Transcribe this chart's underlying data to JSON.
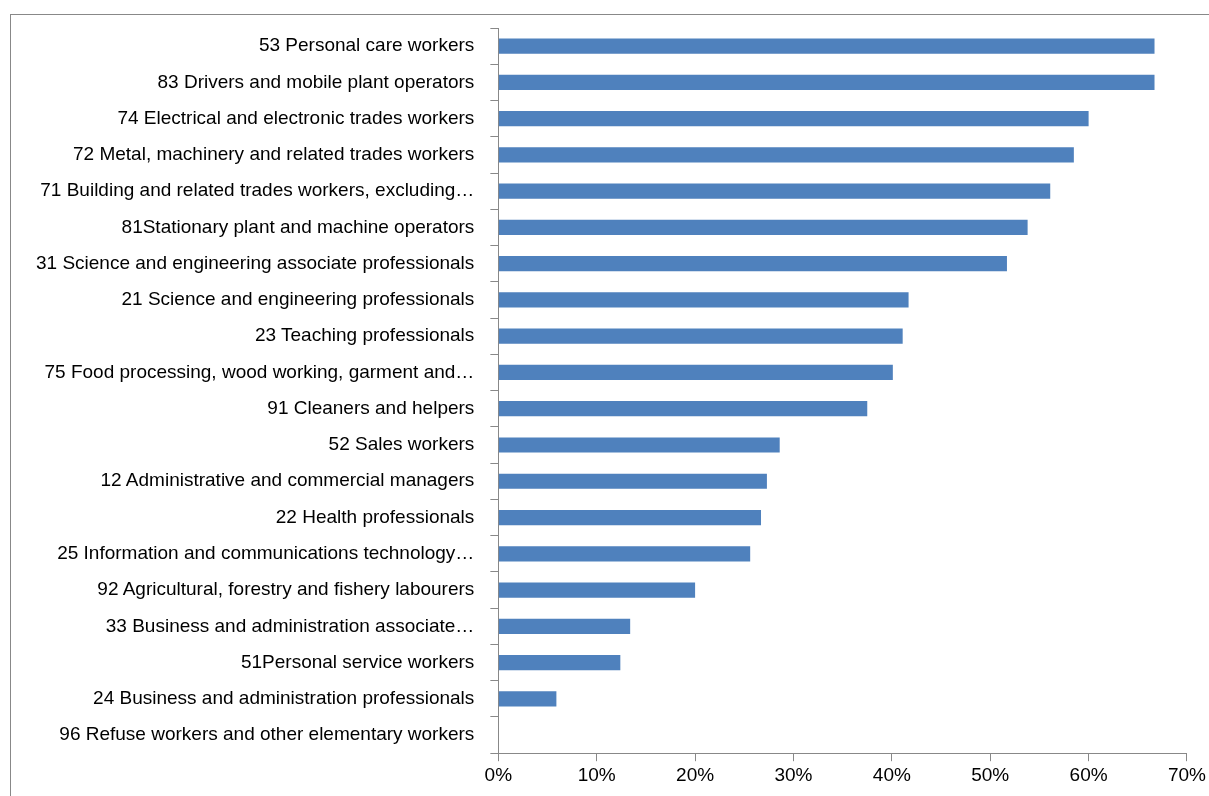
{
  "chart_data": {
    "type": "bar",
    "orientation": "horizontal",
    "color": "#4f81bd",
    "categories": [
      "53 Personal care workers",
      "83 Drivers and mobile plant operators",
      "74 Electrical and electronic trades workers",
      "72 Metal, machinery and related trades workers",
      "71 Building and related trades workers, excluding…",
      "81Stationary plant and machine operators",
      "31 Science and engineering associate professionals",
      "21 Science and engineering professionals",
      "23 Teaching professionals",
      "75 Food processing, wood working, garment and…",
      "91 Cleaners and helpers",
      "52 Sales workers",
      "12 Administrative and commercial managers",
      "22 Health professionals",
      "25 Information and communications technology…",
      "92 Agricultural, forestry and fishery labourers",
      "33 Business and administration associate…",
      "51Personal service workers",
      "24 Business and administration professionals",
      "96 Refuse workers and other elementary workers"
    ],
    "values": [
      66.7,
      66.7,
      60.0,
      58.5,
      56.1,
      53.8,
      51.7,
      41.7,
      41.1,
      40.1,
      37.5,
      28.6,
      27.3,
      26.7,
      25.6,
      20.0,
      13.4,
      12.4,
      5.9,
      0
    ],
    "xlim": [
      0,
      70
    ],
    "xticks": [
      {
        "value": 0,
        "label": "0%"
      },
      {
        "value": 10,
        "label": "10%"
      },
      {
        "value": 20,
        "label": "20%"
      },
      {
        "value": 30,
        "label": "30%"
      },
      {
        "value": 40,
        "label": "40%"
      },
      {
        "value": 50,
        "label": "50%"
      },
      {
        "value": 60,
        "label": "60%"
      },
      {
        "value": 70,
        "label": "70%"
      }
    ],
    "grid": false,
    "legend": false
  }
}
